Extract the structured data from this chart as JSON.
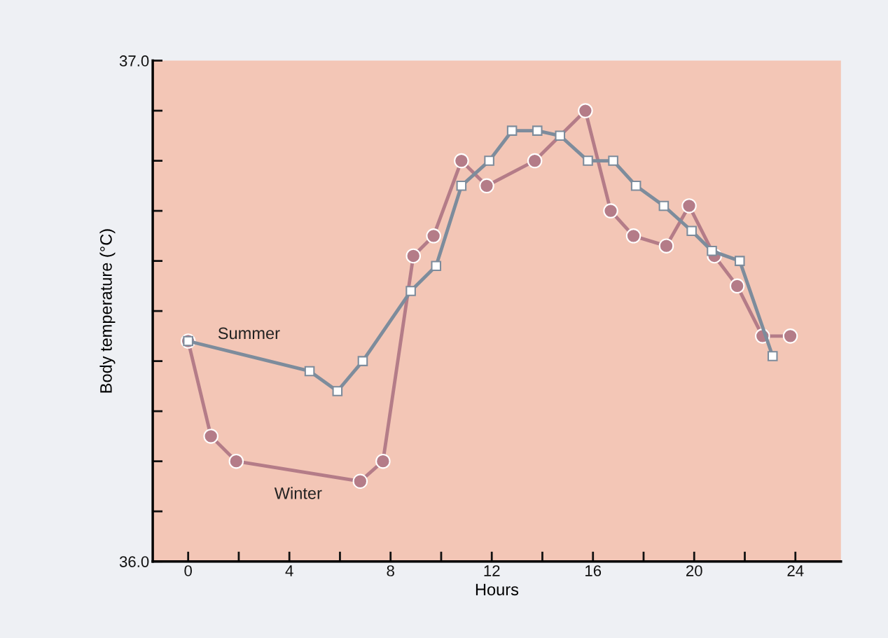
{
  "chart_data": {
    "type": "line",
    "xlabel": "Hours",
    "ylabel": "Body temperature (°C)",
    "xlim": [
      -1.4,
      25.8
    ],
    "ylim": [
      36.0,
      37.0
    ],
    "xticks": [
      0,
      {
        "value": 2,
        "label": null
      },
      4,
      {
        "value": 6,
        "label": null
      },
      8,
      {
        "value": 10,
        "label": null
      },
      12,
      {
        "value": 14,
        "label": null
      },
      16,
      {
        "value": 18,
        "label": null
      },
      20,
      {
        "value": 22,
        "label": null
      },
      24
    ],
    "yticks": [
      {
        "value": 36.0,
        "label": "36.0"
      },
      {
        "value": 36.1,
        "label": null
      },
      {
        "value": 36.2,
        "label": null
      },
      {
        "value": 36.3,
        "label": null
      },
      {
        "value": 36.4,
        "label": null
      },
      {
        "value": 36.5,
        "label": null
      },
      {
        "value": 36.6,
        "label": null
      },
      {
        "value": 36.7,
        "label": null
      },
      {
        "value": 36.8,
        "label": null
      },
      {
        "value": 36.9,
        "label": null
      },
      {
        "value": 37.0,
        "label": "37.0"
      }
    ],
    "grid": false,
    "legend": false,
    "line_style": "solid",
    "series": [
      {
        "name": "Summer",
        "color": "#7d8c9c",
        "marker": "square",
        "x": [
          0,
          4.8,
          5.9,
          6.9,
          8.8,
          9.8,
          10.8,
          11.9,
          12.8,
          13.8,
          14.7,
          15.8,
          16.8,
          17.7,
          18.8,
          19.9,
          20.7,
          21.8,
          23.1
        ],
        "values": [
          36.44,
          36.38,
          36.34,
          36.4,
          36.54,
          36.59,
          36.75,
          36.8,
          36.86,
          36.86,
          36.85,
          36.8,
          36.8,
          36.75,
          36.71,
          36.66,
          36.62,
          36.6,
          36.41
        ]
      },
      {
        "name": "Winter",
        "color": "#b47c88",
        "marker": "circle",
        "x": [
          0,
          0.9,
          1.9,
          6.8,
          7.7,
          8.9,
          9.7,
          10.8,
          11.8,
          13.7,
          15.7,
          16.7,
          17.6,
          18.9,
          19.8,
          20.8,
          21.7,
          22.7,
          23.8
        ],
        "values": [
          36.44,
          36.25,
          36.2,
          36.16,
          36.2,
          36.61,
          36.65,
          36.8,
          36.75,
          36.8,
          36.9,
          36.7,
          36.65,
          36.63,
          36.71,
          36.61,
          36.55,
          36.45,
          36.45
        ]
      }
    ]
  }
}
